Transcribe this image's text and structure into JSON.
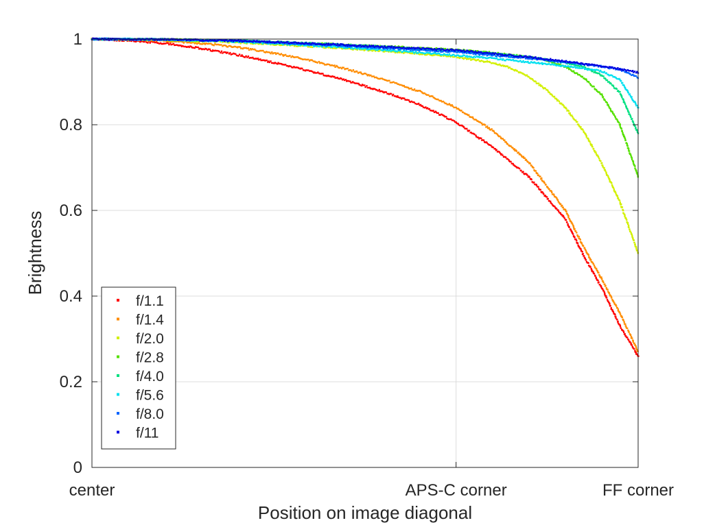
{
  "chart_data": {
    "type": "scatter",
    "xlabel": "Position on image diagonal",
    "ylabel": "Brightness",
    "xlim": [
      0,
      1.5
    ],
    "ylim": [
      0,
      1
    ],
    "x_ticks": [
      {
        "value": 0,
        "label": "center"
      },
      {
        "value": 1.0,
        "label": "APS-C corner"
      },
      {
        "value": 1.5,
        "label": "FF corner"
      }
    ],
    "y_ticks": [
      {
        "value": 0,
        "label": "0"
      },
      {
        "value": 0.2,
        "label": "0.2"
      },
      {
        "value": 0.4,
        "label": "0.4"
      },
      {
        "value": 0.6,
        "label": "0.6"
      },
      {
        "value": 0.8,
        "label": "0.8"
      },
      {
        "value": 1,
        "label": "1"
      }
    ],
    "grid": true,
    "legend_position": "bottom-left",
    "series": [
      {
        "name": "f/1.1",
        "color": "#ff0000",
        "x": [
          0,
          0.1,
          0.2,
          0.3,
          0.4,
          0.5,
          0.6,
          0.7,
          0.8,
          0.9,
          1.0,
          1.1,
          1.2,
          1.3,
          1.35,
          1.4,
          1.45,
          1.5
        ],
        "y": [
          1.0,
          0.997,
          0.99,
          0.978,
          0.963,
          0.945,
          0.925,
          0.903,
          0.877,
          0.847,
          0.806,
          0.748,
          0.678,
          0.58,
          0.495,
          0.42,
          0.33,
          0.26
        ]
      },
      {
        "name": "f/1.4",
        "color": "#ff8c00",
        "x": [
          0,
          0.1,
          0.2,
          0.3,
          0.4,
          0.5,
          0.6,
          0.7,
          0.8,
          0.9,
          1.0,
          1.1,
          1.2,
          1.3,
          1.35,
          1.4,
          1.45,
          1.5
        ],
        "y": [
          1.0,
          0.999,
          0.996,
          0.99,
          0.981,
          0.967,
          0.95,
          0.93,
          0.906,
          0.878,
          0.84,
          0.787,
          0.712,
          0.6,
          0.515,
          0.44,
          0.36,
          0.27
        ]
      },
      {
        "name": "f/2.0",
        "color": "#d2f000",
        "x": [
          0,
          0.1,
          0.2,
          0.3,
          0.4,
          0.5,
          0.6,
          0.7,
          0.8,
          0.9,
          1.0,
          1.1,
          1.15,
          1.2,
          1.25,
          1.3,
          1.35,
          1.4,
          1.45,
          1.5
        ],
        "y": [
          1.0,
          0.999,
          0.998,
          0.995,
          0.992,
          0.988,
          0.983,
          0.978,
          0.972,
          0.966,
          0.958,
          0.945,
          0.932,
          0.912,
          0.88,
          0.84,
          0.785,
          0.71,
          0.62,
          0.5
        ]
      },
      {
        "name": "f/2.8",
        "color": "#55e000",
        "x": [
          0,
          0.2,
          0.4,
          0.6,
          0.8,
          1.0,
          1.1,
          1.2,
          1.25,
          1.3,
          1.35,
          1.4,
          1.45,
          1.5
        ],
        "y": [
          1.0,
          0.999,
          0.996,
          0.99,
          0.983,
          0.975,
          0.968,
          0.958,
          0.95,
          0.935,
          0.91,
          0.87,
          0.8,
          0.68
        ]
      },
      {
        "name": "f/4.0",
        "color": "#00e080",
        "x": [
          0,
          0.2,
          0.4,
          0.6,
          0.8,
          1.0,
          1.1,
          1.2,
          1.3,
          1.35,
          1.4,
          1.45,
          1.5
        ],
        "y": [
          1.0,
          0.999,
          0.996,
          0.99,
          0.982,
          0.972,
          0.966,
          0.958,
          0.945,
          0.935,
          0.915,
          0.875,
          0.78
        ]
      },
      {
        "name": "f/5.6",
        "color": "#00e0f0",
        "x": [
          0,
          0.2,
          0.4,
          0.6,
          0.8,
          1.0,
          1.1,
          1.2,
          1.3,
          1.4,
          1.45,
          1.5
        ],
        "y": [
          1.0,
          0.999,
          0.994,
          0.985,
          0.975,
          0.962,
          0.955,
          0.946,
          0.937,
          0.925,
          0.905,
          0.84
        ]
      },
      {
        "name": "f/8.0",
        "color": "#0064ff",
        "x": [
          0,
          0.2,
          0.4,
          0.6,
          0.8,
          1.0,
          1.1,
          1.2,
          1.3,
          1.4,
          1.45,
          1.5
        ],
        "y": [
          1.0,
          0.999,
          0.996,
          0.988,
          0.979,
          0.97,
          0.962,
          0.955,
          0.946,
          0.936,
          0.929,
          0.91
        ]
      },
      {
        "name": "f/11",
        "color": "#0000e0",
        "x": [
          0,
          0.2,
          0.4,
          0.6,
          0.8,
          1.0,
          1.1,
          1.2,
          1.3,
          1.4,
          1.45,
          1.5
        ],
        "y": [
          1.0,
          0.999,
          0.996,
          0.99,
          0.982,
          0.974,
          0.966,
          0.958,
          0.948,
          0.937,
          0.93,
          0.922
        ]
      }
    ]
  }
}
